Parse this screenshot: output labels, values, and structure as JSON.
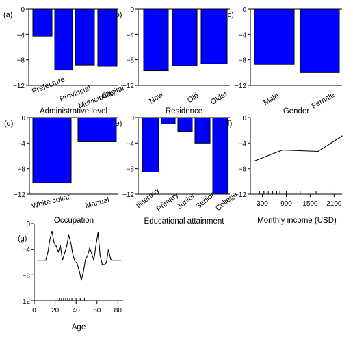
{
  "chart_data": [
    {
      "panel": "(a)",
      "type": "bar",
      "xlabel": "Administrative level",
      "ylabel": "",
      "ylim": [
        -12,
        0
      ],
      "yticks": [
        0,
        -4,
        -8,
        -12
      ],
      "grid": false,
      "categories": [
        "Prefecture",
        "Provincial",
        "Municipality",
        "Capital"
      ],
      "values": [
        -4.3,
        -9.6,
        -8.8,
        -9.0
      ],
      "bar_color": "#0000ff"
    },
    {
      "panel": "(b)",
      "type": "bar",
      "xlabel": "Residence",
      "ylabel": "",
      "ylim": [
        -12,
        0
      ],
      "yticks": [
        0,
        -4,
        -8,
        -12
      ],
      "grid": false,
      "categories": [
        "New",
        "Old",
        "Older"
      ],
      "values": [
        -9.7,
        -8.9,
        -8.6
      ],
      "bar_color": "#0000ff"
    },
    {
      "panel": "(c)",
      "type": "bar",
      "xlabel": "Gender",
      "ylabel": "",
      "ylim": [
        -12,
        0
      ],
      "yticks": [
        0,
        -4,
        -8,
        -12
      ],
      "grid": false,
      "categories": [
        "Male",
        "Female"
      ],
      "values": [
        -8.7,
        -10.0
      ],
      "bar_color": "#0000ff"
    },
    {
      "panel": "(d)",
      "type": "bar",
      "xlabel": "Occupation",
      "ylabel": "",
      "ylim": [
        -12,
        0
      ],
      "yticks": [
        0,
        -4,
        -8,
        -12
      ],
      "grid": false,
      "categories": [
        "White collar",
        "Manual"
      ],
      "values": [
        -10.2,
        -3.8
      ],
      "bar_color": "#0000ff"
    },
    {
      "panel": "(e)",
      "type": "bar",
      "xlabel": "Educational attainment",
      "ylabel": "",
      "ylim": [
        -12,
        0
      ],
      "yticks": [
        0,
        -4,
        -8,
        -12
      ],
      "grid": false,
      "categories": [
        "Illiteracy",
        "Primary",
        "Junior",
        "Senior",
        "College"
      ],
      "values": [
        -8.5,
        -1.0,
        -2.2,
        -4.0,
        -12.0
      ],
      "bar_color": "#0000ff"
    },
    {
      "panel": "(f)",
      "type": "line",
      "xlabel": "Monthly income (USD)",
      "ylabel": "",
      "xlim": [
        0,
        2300
      ],
      "ylim": [
        -12,
        0
      ],
      "xticks": [
        300,
        900,
        1500,
        2100
      ],
      "yticks": [
        0,
        -4,
        -8,
        -12
      ],
      "grid": false,
      "rug": [
        230,
        340,
        450,
        560,
        660,
        740,
        900,
        1250,
        1650,
        2000
      ],
      "series": [
        {
          "x": [
            100,
            800,
            1700,
            2300
          ],
          "y": [
            -6.8,
            -5.1,
            -5.3,
            -2.9
          ]
        }
      ]
    },
    {
      "panel": "(g)",
      "type": "line",
      "xlabel": "Age",
      "ylabel": "",
      "xlim": [
        0,
        85
      ],
      "ylim": [
        -12,
        0
      ],
      "xticks": [
        0,
        20,
        40,
        60,
        80
      ],
      "yticks": [
        0,
        -4,
        -8,
        -12
      ],
      "grid": false,
      "rug": [
        22,
        24,
        26,
        28,
        30,
        32,
        34,
        36,
        40,
        44,
        48
      ],
      "series": [
        {
          "x": [
            3,
            11,
            13,
            15,
            17,
            19,
            21,
            23,
            25,
            27,
            29,
            31,
            33,
            35,
            37,
            39,
            41,
            43,
            45,
            47,
            49,
            51,
            53,
            55,
            57,
            59,
            61,
            63,
            65,
            67,
            69,
            71,
            73,
            75,
            77,
            79,
            81,
            83
          ],
          "y": [
            -5.7,
            -5.7,
            -4.5,
            -2.5,
            -1.2,
            -3.0,
            -3.5,
            -4.4,
            -3.4,
            -5.7,
            -4.6,
            -3.6,
            -1.8,
            -3.0,
            -4.9,
            -5.9,
            -6.2,
            -7.3,
            -8.8,
            -7.5,
            -5.6,
            -5.0,
            -3.8,
            -4.7,
            -5.7,
            -3.4,
            -1.4,
            -5.0,
            -6.3,
            -6.4,
            -6.1,
            -4.0,
            -5.5,
            -5.7,
            -5.7,
            -5.7,
            -5.7,
            -5.7
          ]
        }
      ]
    }
  ]
}
